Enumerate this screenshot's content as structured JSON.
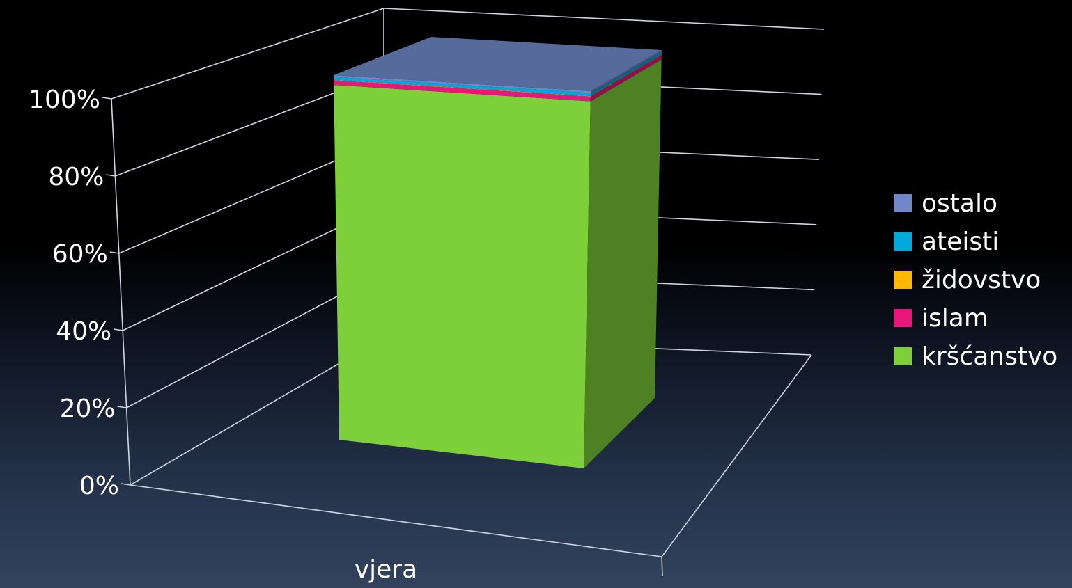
{
  "chart_data": {
    "type": "bar",
    "stacked": true,
    "three_d": true,
    "categories": [
      "vjera"
    ],
    "yaxis_ticks": [
      "0%",
      "20%",
      "40%",
      "60%",
      "80%",
      "100%"
    ],
    "ylim": [
      0,
      100
    ],
    "grid": true,
    "legend_position": "right",
    "series": [
      {
        "name": "kršćanstvo",
        "values": [
          97.3
        ],
        "color": "#7ed03a"
      },
      {
        "name": "islam",
        "values": [
          1.3
        ],
        "color": "#e8187a"
      },
      {
        "name": "židovstvo",
        "values": [
          0.1
        ],
        "color": "#ffb800"
      },
      {
        "name": "ateisti",
        "values": [
          0.8
        ],
        "color": "#00a8dc"
      },
      {
        "name": "ostalo",
        "values": [
          0.5
        ],
        "color": "#7088c8"
      }
    ],
    "legend_order": [
      "ostalo",
      "ateisti",
      "židovstvo",
      "islam",
      "kršćanstvo"
    ]
  }
}
